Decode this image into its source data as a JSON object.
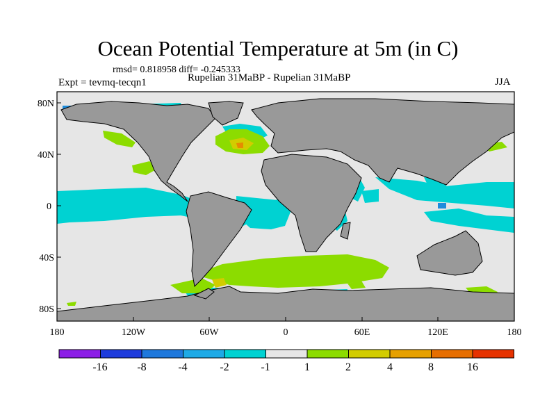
{
  "title": "Ocean Potential Temperature at 5m (in C)",
  "stats": "rmsd= 0.818958 diff= -0.245333",
  "expt": "Expt = tevmq-tecqn1",
  "subtitle": "Rupelian  31MaBP - Rupelian  31MaBP",
  "season": "JJA",
  "lat_ticks": [
    "80N",
    "40N",
    "0",
    "40S",
    "80S"
  ],
  "lon_ticks": [
    "180",
    "120W",
    "60W",
    "0",
    "60E",
    "120E",
    "180"
  ],
  "colors": {
    "land": "#999999",
    "neutral": "#e6e6e6",
    "cyan": "#00d2d2",
    "blue": "#1e8cdc",
    "green": "#8cdc00",
    "yellow": "#d2cc00",
    "orange": "#e68c00"
  },
  "colorbar": {
    "colors": [
      "#8c1ee6",
      "#1e3cdc",
      "#1e78dc",
      "#1eaae6",
      "#00d2d2",
      "#e6e6e6",
      "#8cdc00",
      "#d2cc00",
      "#e6a000",
      "#e66e00",
      "#e63200"
    ],
    "labels": [
      "-16",
      "-8",
      "-4",
      "-2",
      "-1",
      "1",
      "2",
      "4",
      "8",
      "16"
    ]
  }
}
